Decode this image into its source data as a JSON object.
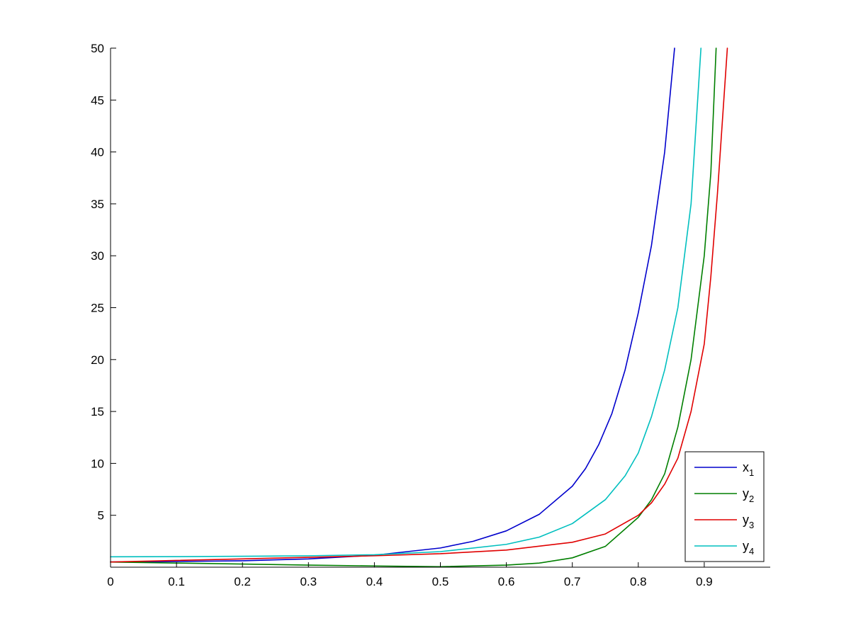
{
  "chart_data": {
    "type": "line",
    "title": "",
    "xlabel": "",
    "ylabel": "",
    "xlim": [
      0,
      1
    ],
    "ylim": [
      0,
      50
    ],
    "grid": false,
    "legend_position": "bottom-right",
    "x_ticks": [
      0,
      0.1,
      0.2,
      0.3,
      0.4,
      0.5,
      0.6,
      0.7,
      0.8,
      0.9
    ],
    "x_tick_labels": [
      "0",
      "0.1",
      "0.2",
      "0.3",
      "0.4",
      "0.5",
      "0.6",
      "0.7",
      "0.8",
      "0.9"
    ],
    "y_ticks": [
      5,
      10,
      15,
      20,
      25,
      30,
      35,
      40,
      45,
      50
    ],
    "y_tick_labels": [
      "5",
      "10",
      "15",
      "20",
      "25",
      "30",
      "35",
      "40",
      "45",
      "50"
    ],
    "series": [
      {
        "name": "x",
        "subscript": "1",
        "color": "#0000cc",
        "points": [
          [
            0,
            0.5
          ],
          [
            0.1,
            0.55
          ],
          [
            0.2,
            0.62
          ],
          [
            0.3,
            0.8
          ],
          [
            0.4,
            1.15
          ],
          [
            0.5,
            1.85
          ],
          [
            0.55,
            2.5
          ],
          [
            0.6,
            3.5
          ],
          [
            0.65,
            5.1
          ],
          [
            0.7,
            7.8
          ],
          [
            0.72,
            9.5
          ],
          [
            0.74,
            11.8
          ],
          [
            0.76,
            14.8
          ],
          [
            0.78,
            19.0
          ],
          [
            0.8,
            24.5
          ],
          [
            0.82,
            31.0
          ],
          [
            0.84,
            40.0
          ],
          [
            0.855,
            50.0
          ]
        ]
      },
      {
        "name": "y",
        "subscript": "2",
        "color": "#007f00",
        "points": [
          [
            0,
            0.5
          ],
          [
            0.1,
            0.4
          ],
          [
            0.2,
            0.3
          ],
          [
            0.3,
            0.2
          ],
          [
            0.4,
            0.12
          ],
          [
            0.5,
            0.05
          ],
          [
            0.6,
            0.2
          ],
          [
            0.65,
            0.4
          ],
          [
            0.7,
            0.9
          ],
          [
            0.75,
            2.0
          ],
          [
            0.8,
            4.8
          ],
          [
            0.82,
            6.5
          ],
          [
            0.84,
            9.0
          ],
          [
            0.86,
            13.5
          ],
          [
            0.88,
            20.0
          ],
          [
            0.9,
            30.0
          ],
          [
            0.91,
            38.0
          ],
          [
            0.918,
            50.0
          ]
        ]
      },
      {
        "name": "y",
        "subscript": "3",
        "color": "#e00000",
        "points": [
          [
            0,
            0.5
          ],
          [
            0.1,
            0.65
          ],
          [
            0.2,
            0.8
          ],
          [
            0.3,
            0.95
          ],
          [
            0.4,
            1.1
          ],
          [
            0.5,
            1.3
          ],
          [
            0.6,
            1.65
          ],
          [
            0.7,
            2.4
          ],
          [
            0.75,
            3.2
          ],
          [
            0.8,
            5.0
          ],
          [
            0.82,
            6.2
          ],
          [
            0.84,
            8.0
          ],
          [
            0.86,
            10.5
          ],
          [
            0.88,
            15.0
          ],
          [
            0.9,
            21.5
          ],
          [
            0.91,
            28.0
          ],
          [
            0.92,
            36.0
          ],
          [
            0.935,
            50.0
          ]
        ]
      },
      {
        "name": "y",
        "subscript": "4",
        "color": "#00bfbf",
        "points": [
          [
            0,
            1.0
          ],
          [
            0.1,
            1.02
          ],
          [
            0.2,
            1.05
          ],
          [
            0.3,
            1.1
          ],
          [
            0.4,
            1.2
          ],
          [
            0.5,
            1.5
          ],
          [
            0.6,
            2.2
          ],
          [
            0.65,
            2.9
          ],
          [
            0.7,
            4.2
          ],
          [
            0.75,
            6.5
          ],
          [
            0.78,
            8.8
          ],
          [
            0.8,
            11.0
          ],
          [
            0.82,
            14.5
          ],
          [
            0.84,
            19.0
          ],
          [
            0.86,
            25.0
          ],
          [
            0.88,
            35.0
          ],
          [
            0.895,
            50.0
          ]
        ]
      }
    ]
  }
}
